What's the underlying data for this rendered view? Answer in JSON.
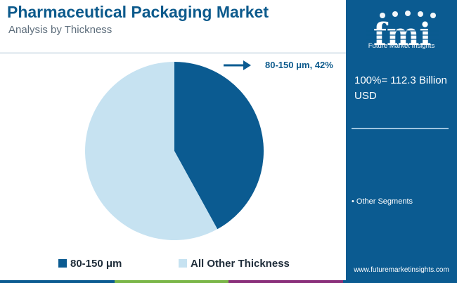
{
  "header": {
    "title": "Pharmaceutical Packaging Market",
    "subtitle": "Analysis by Thickness"
  },
  "brand": {
    "logo_text": "fmi",
    "tagline": "Future Market Insights",
    "website": "www.futuremarketinsights.com",
    "panel_color": "#0b5b91"
  },
  "summary": {
    "total_label": "100%= 112.3 Billion USD",
    "other_segments_label": "• Other Segments"
  },
  "colors": {
    "title": "#0c5a8c",
    "dark_slice": "#0b5b91",
    "light_slice": "#c6e2f1",
    "bottom_bar": [
      "#0b5b91",
      "#7ab648",
      "#8a2f7a",
      "#0b5b91"
    ]
  },
  "chart_data": {
    "type": "pie",
    "title": "Pharmaceutical Packaging Market",
    "subtitle": "Analysis by Thickness",
    "slices": [
      {
        "label": "80-150 μm",
        "value": 42,
        "color": "#0b5b91"
      },
      {
        "label": "All Other Thickness",
        "value": 58,
        "color": "#c6e2f1"
      }
    ],
    "annotation": "80-150 μm, 42%",
    "legend": [
      "80-150 μm",
      "All Other Thickness"
    ],
    "legend_position": "bottom"
  }
}
